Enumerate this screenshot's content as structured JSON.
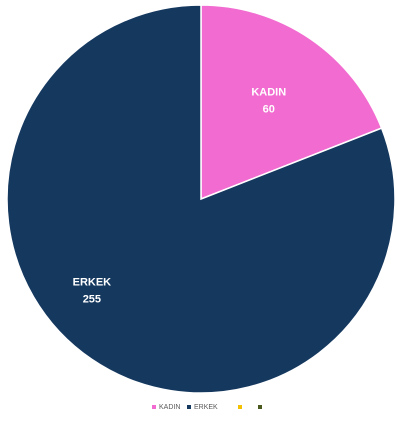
{
  "chart_data": {
    "type": "pie",
    "title": "",
    "slices": [
      {
        "label": "KADIN",
        "value": 60,
        "color": "#f26bd0"
      },
      {
        "label": "ERKEK",
        "value": 255,
        "color": "#15385f"
      }
    ],
    "legend": {
      "placement": "bottom",
      "entries": [
        {
          "label": "KADIN",
          "color": "#f26bd0"
        },
        {
          "label": "ERKEK",
          "color": "#15385f"
        },
        {
          "label": "",
          "color": "#f2c200"
        },
        {
          "label": "",
          "color": "#4a5a1e"
        }
      ]
    }
  }
}
